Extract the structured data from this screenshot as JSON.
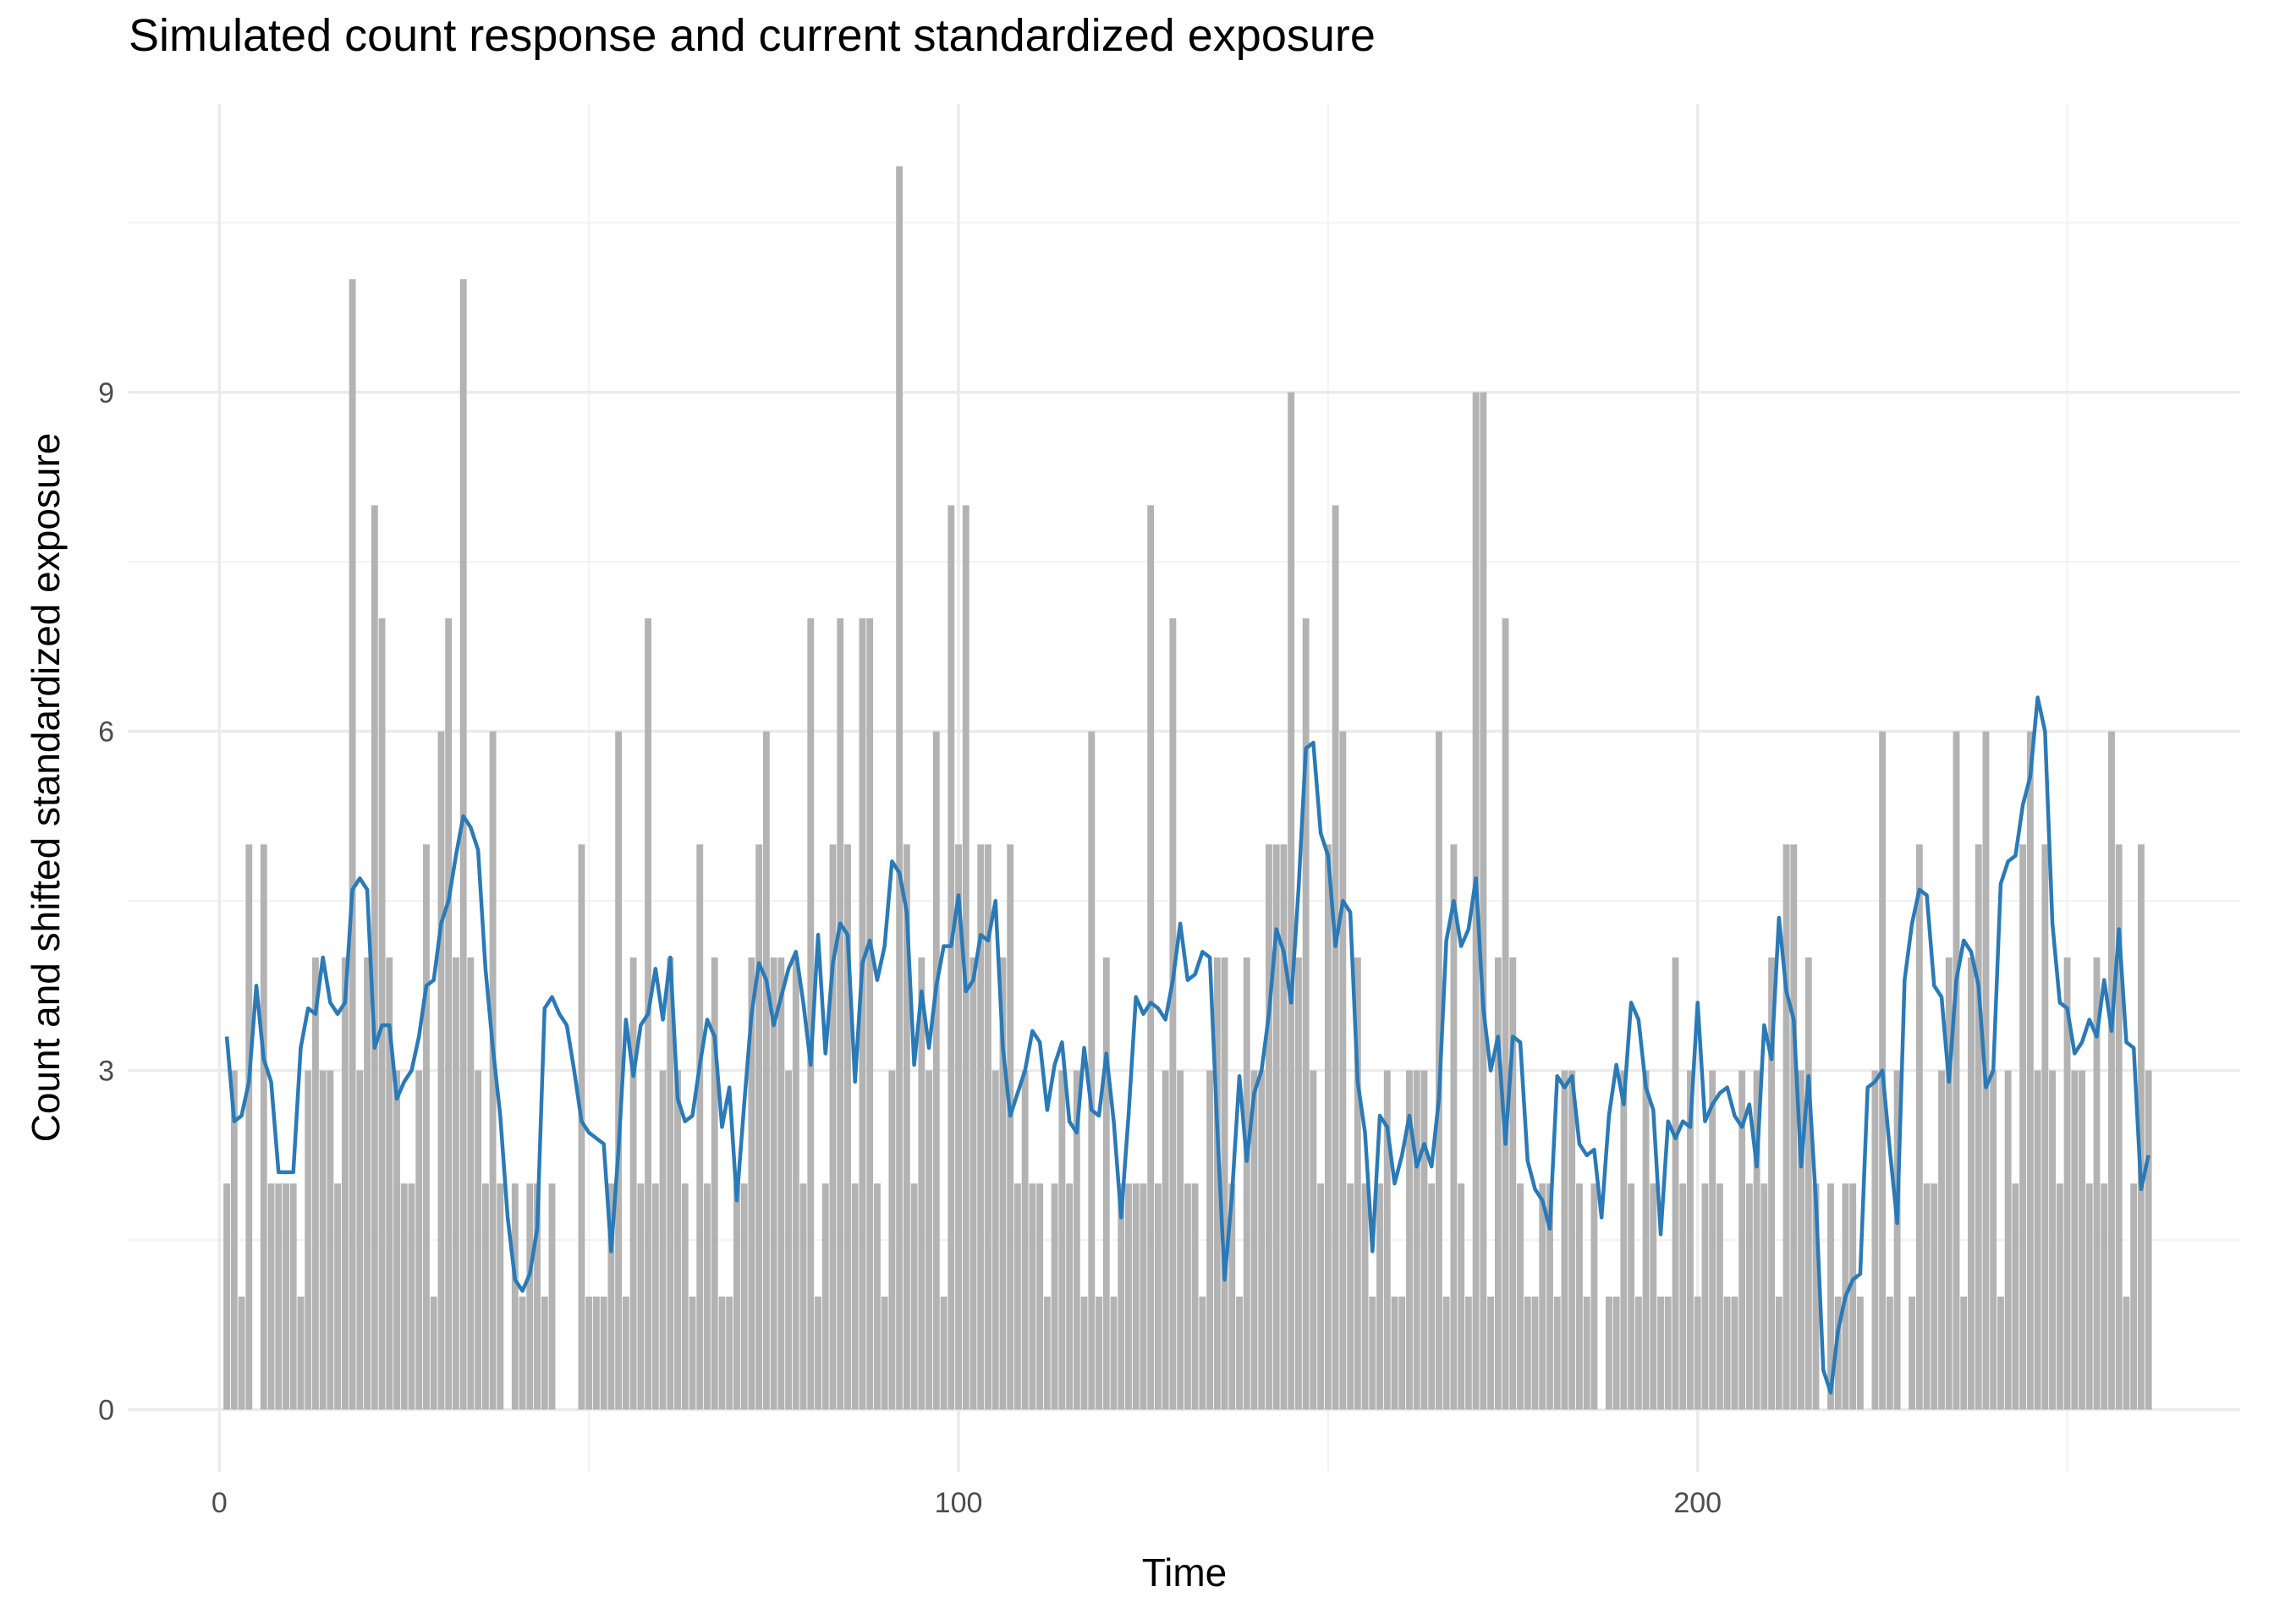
{
  "chart_data": {
    "type": "bar",
    "title": "Simulated count response and current standardized exposure",
    "x_label": "Time",
    "y_label": "Count and shifted standardized exposure",
    "x": [
      1,
      2,
      3,
      4,
      5,
      6,
      7,
      8,
      9,
      10,
      11,
      12,
      13,
      14,
      15,
      16,
      17,
      18,
      19,
      20,
      21,
      22,
      23,
      24,
      25,
      26,
      27,
      28,
      29,
      30,
      31,
      32,
      33,
      34,
      35,
      36,
      37,
      38,
      39,
      40,
      41,
      42,
      43,
      44,
      45,
      46,
      47,
      48,
      49,
      50,
      51,
      52,
      53,
      54,
      55,
      56,
      57,
      58,
      59,
      60,
      61,
      62,
      63,
      64,
      65,
      66,
      67,
      68,
      69,
      70,
      71,
      72,
      73,
      74,
      75,
      76,
      77,
      78,
      79,
      80,
      81,
      82,
      83,
      84,
      85,
      86,
      87,
      88,
      89,
      90,
      91,
      92,
      93,
      94,
      95,
      96,
      97,
      98,
      99,
      100,
      101,
      102,
      103,
      104,
      105,
      106,
      107,
      108,
      109,
      110,
      111,
      112,
      113,
      114,
      115,
      116,
      117,
      118,
      119,
      120,
      121,
      122,
      123,
      124,
      125,
      126,
      127,
      128,
      129,
      130,
      131,
      132,
      133,
      134,
      135,
      136,
      137,
      138,
      139,
      140,
      141,
      142,
      143,
      144,
      145,
      146,
      147,
      148,
      149,
      150,
      151,
      152,
      153,
      154,
      155,
      156,
      157,
      158,
      159,
      160,
      161,
      162,
      163,
      164,
      165,
      166,
      167,
      168,
      169,
      170,
      171,
      172,
      173,
      174,
      175,
      176,
      177,
      178,
      179,
      180,
      181,
      182,
      183,
      184,
      185,
      186,
      187,
      188,
      189,
      190,
      191,
      192,
      193,
      194,
      195,
      196,
      197,
      198,
      199,
      200,
      201,
      202,
      203,
      204,
      205,
      206,
      207,
      208,
      209,
      210,
      211,
      212,
      213,
      214,
      215,
      216,
      217,
      218,
      219,
      220,
      221,
      222,
      223,
      224,
      225,
      226,
      227,
      228,
      229,
      230,
      231,
      232,
      233,
      234,
      235,
      236,
      237,
      238,
      239,
      240,
      241,
      242,
      243,
      244,
      245,
      246,
      247,
      248,
      249,
      250,
      251,
      252,
      253,
      254,
      255,
      256,
      257,
      258,
      259,
      260,
      261
    ],
    "series": [
      {
        "type": "bar",
        "color": "#b3b3b3",
        "bar_width": 0.9,
        "values": [
          2,
          3,
          1,
          5,
          0,
          5,
          2,
          2,
          2,
          2,
          1,
          3,
          4,
          3,
          3,
          2,
          4,
          10,
          3,
          4,
          8,
          7,
          4,
          3,
          2,
          2,
          3,
          5,
          1,
          6,
          7,
          4,
          10,
          4,
          3,
          2,
          6,
          2,
          0,
          2,
          1,
          2,
          2,
          1,
          2,
          0,
          0,
          0,
          5,
          1,
          1,
          1,
          2,
          6,
          1,
          4,
          2,
          7,
          2,
          3,
          4,
          3,
          2,
          1,
          5,
          2,
          4,
          1,
          1,
          2,
          2,
          4,
          5,
          6,
          4,
          4,
          3,
          4,
          2,
          7,
          1,
          2,
          5,
          7,
          5,
          2,
          7,
          7,
          2,
          1,
          3,
          11,
          5,
          2,
          4,
          3,
          6,
          1,
          8,
          5,
          8,
          4,
          5,
          5,
          3,
          4,
          5,
          2,
          3,
          2,
          2,
          1,
          2,
          3,
          2,
          3,
          1,
          6,
          1,
          4,
          1,
          2,
          2,
          2,
          2,
          8,
          2,
          3,
          7,
          3,
          2,
          2,
          1,
          3,
          4,
          4,
          2,
          1,
          4,
          3,
          3,
          5,
          5,
          5,
          9,
          4,
          7,
          3,
          2,
          5,
          8,
          6,
          2,
          4,
          2,
          1,
          2,
          3,
          1,
          1,
          3,
          3,
          3,
          2,
          6,
          1,
          5,
          2,
          1,
          9,
          9,
          1,
          4,
          7,
          4,
          2,
          1,
          1,
          2,
          2,
          1,
          3,
          3,
          2,
          1,
          2,
          0,
          1,
          1,
          3,
          2,
          1,
          3,
          2,
          1,
          1,
          4,
          2,
          3,
          1,
          2,
          3,
          2,
          1,
          1,
          3,
          2,
          3,
          2,
          4,
          1,
          5,
          5,
          3,
          4,
          2,
          0,
          2,
          1,
          2,
          2,
          1,
          0,
          3,
          6,
          1,
          3,
          0,
          1,
          5,
          2,
          2,
          3,
          4,
          6,
          1,
          4,
          5,
          6,
          3,
          1,
          3,
          2,
          5,
          6,
          3,
          5,
          3,
          2,
          4,
          3,
          3,
          2,
          4,
          2,
          6,
          5,
          1,
          2,
          5,
          3
        ]
      },
      {
        "type": "line",
        "color": "#2a7ab8",
        "values": [
          3.3,
          2.55,
          2.6,
          2.9,
          3.75,
          3.1,
          2.9,
          2.1,
          2.1,
          2.1,
          3.2,
          3.55,
          3.5,
          4.0,
          3.6,
          3.5,
          3.6,
          4.6,
          4.7,
          4.6,
          3.2,
          3.4,
          3.4,
          2.75,
          2.9,
          3.0,
          3.3,
          3.75,
          3.8,
          4.3,
          4.5,
          4.9,
          5.25,
          5.15,
          4.95,
          3.9,
          3.2,
          2.6,
          1.7,
          1.15,
          1.05,
          1.2,
          1.6,
          3.55,
          3.65,
          3.5,
          3.4,
          3.0,
          2.55,
          2.45,
          2.4,
          2.35,
          1.4,
          2.3,
          3.45,
          2.95,
          3.4,
          3.5,
          3.9,
          3.45,
          4.0,
          2.75,
          2.55,
          2.6,
          3.05,
          3.45,
          3.3,
          2.5,
          2.85,
          1.85,
          2.7,
          3.5,
          3.95,
          3.8,
          3.4,
          3.65,
          3.9,
          4.05,
          3.6,
          3.05,
          4.2,
          3.15,
          3.95,
          4.3,
          4.2,
          2.9,
          3.95,
          4.15,
          3.8,
          4.1,
          4.85,
          4.75,
          4.4,
          3.05,
          3.7,
          3.2,
          3.75,
          4.1,
          4.1,
          4.55,
          3.7,
          3.8,
          4.2,
          4.15,
          4.5,
          3.2,
          2.6,
          2.8,
          3.0,
          3.35,
          3.25,
          2.65,
          3.05,
          3.25,
          2.55,
          2.45,
          3.2,
          2.65,
          2.6,
          3.15,
          2.55,
          1.7,
          2.6,
          3.65,
          3.5,
          3.6,
          3.55,
          3.45,
          3.8,
          4.3,
          3.8,
          3.85,
          4.05,
          4.0,
          2.5,
          1.15,
          1.9,
          2.95,
          2.2,
          2.8,
          3.0,
          3.5,
          4.25,
          4.05,
          3.6,
          4.6,
          5.85,
          5.9,
          5.1,
          4.9,
          4.1,
          4.5,
          4.4,
          2.9,
          2.45,
          1.4,
          2.6,
          2.5,
          2.0,
          2.25,
          2.6,
          2.15,
          2.35,
          2.15,
          2.75,
          4.15,
          4.5,
          4.1,
          4.25,
          4.7,
          3.55,
          3.0,
          3.3,
          2.35,
          3.3,
          3.25,
          2.2,
          1.95,
          1.85,
          1.6,
          2.95,
          2.85,
          2.95,
          2.35,
          2.25,
          2.3,
          1.7,
          2.6,
          3.05,
          2.7,
          3.6,
          3.45,
          2.85,
          2.65,
          1.55,
          2.55,
          2.4,
          2.55,
          2.5,
          3.6,
          2.55,
          2.7,
          2.8,
          2.85,
          2.6,
          2.5,
          2.7,
          2.15,
          3.4,
          3.1,
          4.35,
          3.7,
          3.45,
          2.15,
          2.95,
          1.85,
          0.35,
          0.15,
          0.7,
          1.0,
          1.15,
          1.2,
          2.85,
          2.9,
          3.0,
          2.3,
          1.65,
          3.8,
          4.3,
          4.6,
          4.55,
          3.75,
          3.65,
          2.9,
          3.8,
          4.15,
          4.05,
          3.75,
          2.85,
          3.0,
          4.65,
          4.85,
          4.9,
          5.35,
          5.6,
          6.3,
          6.0,
          4.3,
          3.6,
          3.55,
          3.15,
          3.25,
          3.45,
          3.3,
          3.8,
          3.35,
          4.25,
          3.25,
          3.2,
          1.95,
          2.25
        ]
      }
    ],
    "xlim": [
      -12.4,
      273.4
    ],
    "ylim": [
      -0.55,
      11.55
    ],
    "xticks": [
      0,
      100,
      200
    ],
    "yticks": [
      0,
      3,
      6,
      9
    ],
    "xminorticks": [
      50,
      150,
      250
    ],
    "yminorticks": [
      1.5,
      4.5,
      7.5,
      10.5
    ],
    "grid": true
  }
}
